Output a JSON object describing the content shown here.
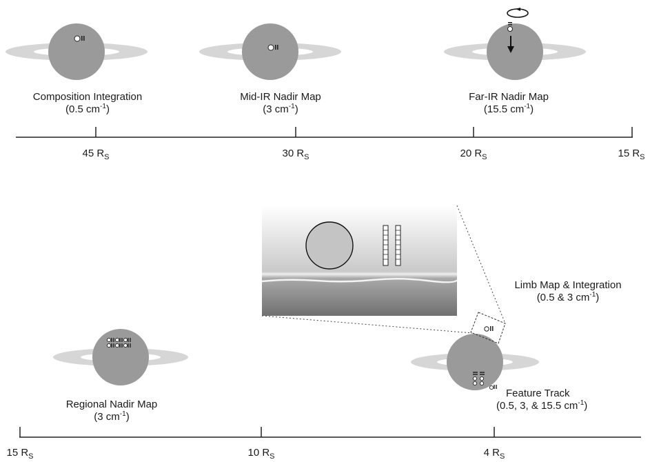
{
  "top_panel": {
    "maps": [
      {
        "title": "Composition Integration",
        "res_value": "(0.5 cm",
        "res_exp": "-1",
        "res_close": ")"
      },
      {
        "title": "Mid-IR Nadir Map",
        "res_value": "(3 cm",
        "res_exp": "-1",
        "res_close": ")"
      },
      {
        "title": "Far-IR Nadir Map",
        "res_value": "(15.5 cm",
        "res_exp": "-1",
        "res_close": ")"
      }
    ],
    "axis_ticks": [
      {
        "value": "45 R",
        "sub": "S"
      },
      {
        "value": "30 R",
        "sub": "S"
      },
      {
        "value": "20 R",
        "sub": "S"
      },
      {
        "value": "15 R",
        "sub": "S"
      }
    ]
  },
  "bottom_panel": {
    "maps": [
      {
        "title": "Regional Nadir Map",
        "res_value": "(3 cm",
        "res_exp": "-1",
        "res_close": ")"
      },
      {
        "title": "Limb Map & Integration",
        "res_value": "(0.5 & 3 cm",
        "res_exp": "-1",
        "res_close": ")"
      },
      {
        "title": "Feature Track",
        "res_value": "(0.5, 3, & 15.5 cm",
        "res_exp": "-1",
        "res_close": ")"
      }
    ],
    "axis_ticks": [
      {
        "value": "15 R",
        "sub": "S"
      },
      {
        "value": "10 R",
        "sub": "S"
      },
      {
        "value": "4 R",
        "sub": "S"
      }
    ]
  },
  "colors": {
    "planet": "#9a9a9a",
    "ring": "#d6d6d6",
    "axis": "#222222",
    "limb_panel_top": "#ffffff",
    "limb_panel_bottom": "#7a7a7a"
  }
}
